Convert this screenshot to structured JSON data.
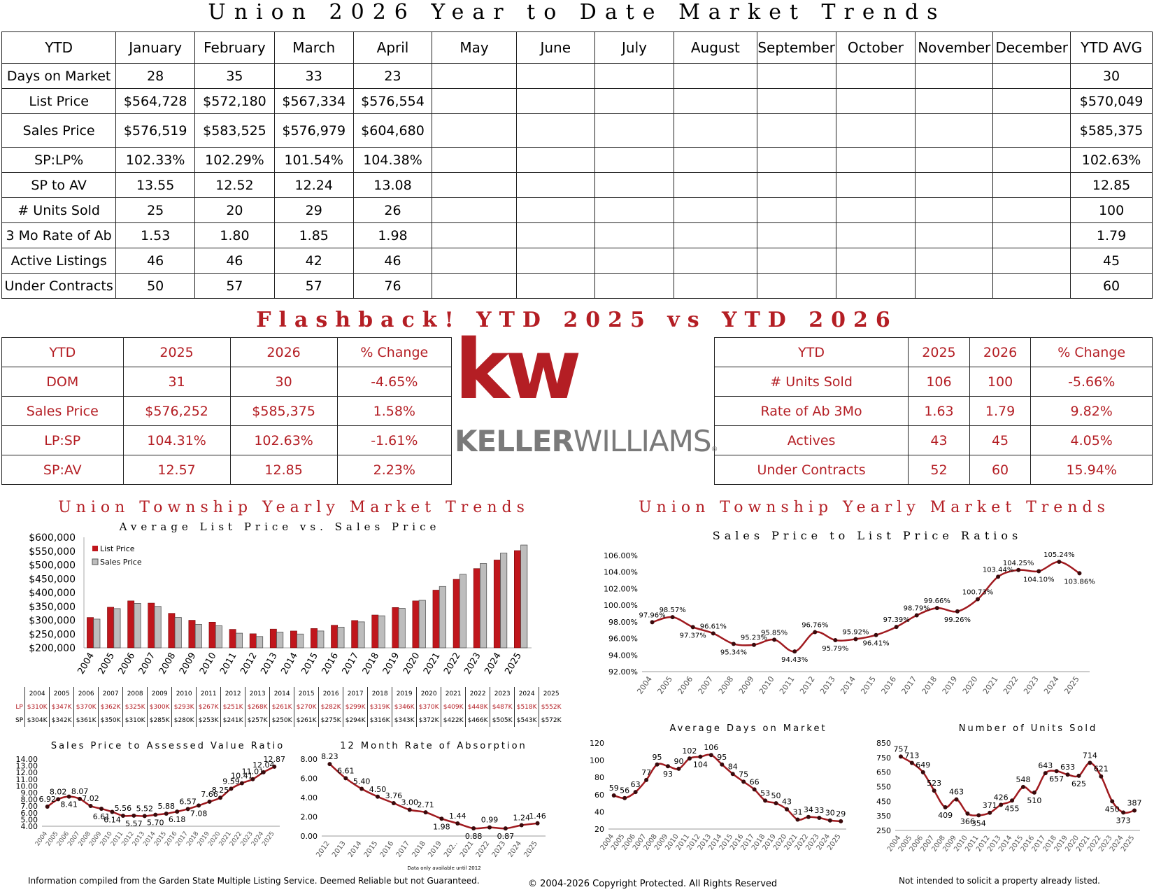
{
  "title": "Union 2026 Year to Date Market Trends",
  "main_table": {
    "headers": [
      "YTD",
      "January",
      "February",
      "March",
      "April",
      "May",
      "June",
      "July",
      "August",
      "September",
      "October",
      "November",
      "December",
      "YTD AVG"
    ],
    "rows": [
      {
        "label": "Days on Market",
        "values": [
          "28",
          "35",
          "33",
          "23",
          "",
          "",
          "",
          "",
          "",
          "",
          "",
          ""
        ],
        "avg": "30"
      },
      {
        "label": "List Price",
        "values": [
          "$564,728",
          "$572,180",
          "$567,334",
          "$576,554",
          "",
          "",
          "",
          "",
          "",
          "",
          "",
          ""
        ],
        "avg": "$570,049"
      },
      {
        "label": "Sales Price",
        "values": [
          "$576,519",
          "$583,525",
          "$576,979",
          "$604,680",
          "",
          "",
          "",
          "",
          "",
          "",
          "",
          ""
        ],
        "avg": "$585,375"
      },
      {
        "label": "SP:LP%",
        "values": [
          "102.33%",
          "102.29%",
          "101.54%",
          "104.38%",
          "",
          "",
          "",
          "",
          "",
          "",
          "",
          ""
        ],
        "avg": "102.63%"
      },
      {
        "label": "SP to AV",
        "values": [
          "13.55",
          "12.52",
          "12.24",
          "13.08",
          "",
          "",
          "",
          "",
          "",
          "",
          "",
          ""
        ],
        "avg": "12.85"
      },
      {
        "label": "# Units Sold",
        "values": [
          "25",
          "20",
          "29",
          "26",
          "",
          "",
          "",
          "",
          "",
          "",
          "",
          ""
        ],
        "avg": "100"
      },
      {
        "label": "3 Mo Rate of Ab",
        "values": [
          "1.53",
          "1.80",
          "1.85",
          "1.98",
          "",
          "",
          "",
          "",
          "",
          "",
          "",
          ""
        ],
        "avg": "1.79"
      },
      {
        "label": "Active Listings",
        "values": [
          "46",
          "46",
          "42",
          "46",
          "",
          "",
          "",
          "",
          "",
          "",
          "",
          ""
        ],
        "avg": "45"
      },
      {
        "label": "Under Contracts",
        "values": [
          "50",
          "57",
          "57",
          "76",
          "",
          "",
          "",
          "",
          "",
          "",
          "",
          ""
        ],
        "avg": "60"
      }
    ]
  },
  "flashback": {
    "title": "Flashback!  YTD 2025 vs YTD 2026",
    "left": {
      "headers": [
        "YTD",
        "2025",
        "2026",
        "% Change"
      ],
      "rows": [
        [
          "DOM",
          "31",
          "30",
          "-4.65%"
        ],
        [
          "Sales Price",
          "$576,252",
          "$585,375",
          "1.58%"
        ],
        [
          "LP:SP",
          "104.31%",
          "102.63%",
          "-1.61%"
        ],
        [
          "SP:AV",
          "12.57",
          "12.85",
          "2.23%"
        ]
      ]
    },
    "right": {
      "headers": [
        "YTD",
        "2025",
        "2026",
        "% Change"
      ],
      "rows": [
        [
          "# Units Sold",
          "106",
          "100",
          "-5.66%"
        ],
        [
          "Rate of Ab 3Mo",
          "1.63",
          "1.79",
          "9.82%"
        ],
        [
          "Actives",
          "43",
          "45",
          "4.05%"
        ],
        [
          "Under Contracts",
          "52",
          "60",
          "15.94%"
        ]
      ]
    }
  },
  "logo": {
    "mark": "kw",
    "text_bold": "KELLER",
    "text_light": "WILLIAMS",
    "reg": "®"
  },
  "left_section": {
    "title": "Union Township Yearly Market Trends",
    "subtitle": "Average List Price vs. Sales Price"
  },
  "right_section": {
    "title": "Union Township Yearly Market Trends",
    "subtitle": "Sales Price to List Price Ratios"
  },
  "colors": {
    "accent": "#b41e24",
    "list_bar": "#c0161c",
    "sales_bar": "#bdbdbd"
  },
  "chart_data": [
    {
      "id": "lp-sp",
      "type": "bar",
      "title": "Average List Price vs. Sales Price",
      "categories": [
        "2004",
        "2005",
        "2006",
        "2007",
        "2008",
        "2009",
        "2010",
        "2011",
        "2012",
        "2013",
        "2014",
        "2015",
        "2016",
        "2017",
        "2018",
        "2019",
        "2020",
        "2021",
        "2022",
        "2023",
        "2024",
        "2025"
      ],
      "series": [
        {
          "name": "List Price",
          "values": [
            310000,
            347000,
            370000,
            362000,
            325000,
            300000,
            293000,
            267000,
            251000,
            268000,
            261000,
            270000,
            282000,
            299000,
            319000,
            346000,
            370000,
            409000,
            448000,
            487000,
            518000,
            552000
          ]
        },
        {
          "name": "Sales Price",
          "values": [
            304000,
            342000,
            361000,
            350000,
            310000,
            285000,
            280000,
            253000,
            241000,
            257000,
            250000,
            261000,
            275000,
            294000,
            316000,
            343000,
            372000,
            422000,
            466000,
            505000,
            543000,
            572000
          ]
        }
      ],
      "yticks": [
        "$200,000",
        "$250,000",
        "$300,000",
        "$350,000",
        "$400,000",
        "$450,000",
        "$500,000",
        "$550,000",
        "$600,000"
      ],
      "ylim": [
        200000,
        600000
      ],
      "table": {
        "lp_label": "LP",
        "sp_label": "SP",
        "lp": [
          "$310K",
          "$347K",
          "$370K",
          "$362K",
          "$325K",
          "$300K",
          "$293K",
          "$267K",
          "$251K",
          "$268K",
          "$261K",
          "$270K",
          "$282K",
          "$299K",
          "$319K",
          "$346K",
          "$370K",
          "$409K",
          "$448K",
          "$487K",
          "$518K",
          "$552K"
        ],
        "sp": [
          "$304K",
          "$342K",
          "$361K",
          "$350K",
          "$310K",
          "$285K",
          "$280K",
          "$253K",
          "$241K",
          "$257K",
          "$250K",
          "$261K",
          "$275K",
          "$294K",
          "$316K",
          "$343K",
          "$372K",
          "$422K",
          "$466K",
          "$505K",
          "$543K",
          "$572K"
        ]
      }
    },
    {
      "id": "splp",
      "type": "line",
      "title": "Sales Price to List Price Ratios",
      "x": [
        "2004",
        "2005",
        "2006",
        "2007",
        "2008",
        "2009",
        "2010",
        "2011",
        "2012",
        "2013",
        "2014",
        "2015",
        "2016",
        "2017",
        "2018",
        "2019",
        "2020",
        "2021",
        "2022",
        "2023",
        "2024",
        "2025"
      ],
      "values": [
        97.96,
        98.57,
        97.37,
        96.61,
        95.34,
        95.23,
        95.85,
        94.43,
        96.76,
        95.79,
        95.92,
        96.41,
        97.39,
        98.79,
        99.66,
        99.26,
        100.73,
        103.44,
        104.25,
        104.1,
        105.24,
        103.86
      ],
      "labels": [
        "97.96%",
        "98.57%",
        "97.37%",
        "96.61%",
        "95.34%",
        "95.23%",
        "95.85%",
        "94.43%",
        "96.76%",
        "95.79%",
        "95.92%",
        "96.41%",
        "97.39%",
        "98.79%",
        "99.66%",
        "99.26%",
        "100.73%",
        "103.44%",
        "104.25%",
        "104.10%",
        "105.24%",
        "103.86%"
      ],
      "yticks": [
        "92.00%",
        "94.00%",
        "96.00%",
        "98.00%",
        "100.00%",
        "102.00%",
        "104.00%",
        "106.00%"
      ],
      "ylim": [
        92,
        106
      ]
    },
    {
      "id": "spav",
      "type": "line",
      "title": "Sales Price to Assessed Value Ratio",
      "x": [
        "2004",
        "2005",
        "2006",
        "2007",
        "2008",
        "2009",
        "2010",
        "2011",
        "2012",
        "2013",
        "2014",
        "2015",
        "2016",
        "2017",
        "2018",
        "2019",
        "2020",
        "2021",
        "2022",
        "2023",
        "2024",
        "2025"
      ],
      "values": [
        6.92,
        8.02,
        8.41,
        8.07,
        7.02,
        6.61,
        6.14,
        5.56,
        5.57,
        5.52,
        5.7,
        5.88,
        6.18,
        6.57,
        7.08,
        7.66,
        8.25,
        9.59,
        10.41,
        11.01,
        12.04,
        12.87
      ],
      "labels": [
        "6.92",
        "8.02",
        "8.41",
        "8.07",
        "7.02",
        "6.61",
        "6.14",
        "5.56",
        "5.57",
        "5.52",
        "5.70",
        "5.88",
        "6.18",
        "6.57",
        "7.08",
        "7.66",
        "8.25",
        "9.59",
        "10.41",
        "11.01",
        "12.04",
        "12.87"
      ],
      "yticks": [
        "4.00",
        "5.00",
        "6.00",
        "7.00",
        "8.00",
        "9.00",
        "10.00",
        "11.00",
        "12.00",
        "13.00",
        "14.00"
      ],
      "ylim": [
        4,
        14
      ]
    },
    {
      "id": "absorb",
      "type": "line",
      "title": "12 Month Rate of Absorption",
      "x": [
        "2012",
        "2013",
        "2014",
        "2015",
        "2016",
        "2017",
        "2018",
        "2019",
        "202..",
        "2021",
        "2022",
        "2023",
        "2024",
        "2025"
      ],
      "values": [
        8.23,
        6.61,
        5.4,
        4.5,
        3.76,
        3.0,
        2.71,
        1.98,
        1.44,
        0.88,
        0.99,
        0.87,
        1.24,
        1.46
      ],
      "labels": [
        "8.23",
        "6.61",
        "5.40",
        "4.50",
        "3.76",
        "3.00",
        "2.71",
        "1.98",
        "1.44",
        "0.88",
        "0.99",
        "0.87",
        "1.24",
        "1.46"
      ],
      "yticks": [
        "0.00",
        "2.00",
        "4.00",
        "6.00",
        "8.00"
      ],
      "ylim": [
        0,
        8.8
      ],
      "note": "Data only available until 2012"
    },
    {
      "id": "dom",
      "type": "line",
      "title": "Average Days on Market",
      "x": [
        "2004",
        "2005",
        "2006",
        "2007",
        "2008",
        "2009",
        "2010",
        "2011",
        "2012",
        "2013",
        "2014",
        "2015",
        "2016",
        "2017",
        "2018",
        "2019",
        "2020",
        "2021",
        "2022",
        "2023",
        "2024",
        "2025"
      ],
      "values": [
        59,
        56,
        63,
        77,
        95,
        93,
        90,
        102,
        104,
        106,
        95,
        84,
        75,
        66,
        53,
        50,
        43,
        31,
        34,
        33,
        30,
        29
      ],
      "labels": [
        "59",
        "56",
        "63",
        "77",
        "95",
        "93",
        "90",
        "102",
        "104",
        "106",
        "95",
        "84",
        "75",
        "66",
        "53",
        "50",
        "43",
        "31",
        "34",
        "33",
        "30",
        "29"
      ],
      "yticks": [
        "20",
        "40",
        "60",
        "80",
        "100",
        "120"
      ],
      "ylim": [
        20,
        120
      ]
    },
    {
      "id": "units",
      "type": "line",
      "title": "Number of Units Sold",
      "x": [
        "2004",
        "2005",
        "2006",
        "2007",
        "2008",
        "2009",
        "2010",
        "2011",
        "2012",
        "2013",
        "2014",
        "2015",
        "2016",
        "2017",
        "2018",
        "2019",
        "2020",
        "2021",
        "2022",
        "2023",
        "2024",
        "2025"
      ],
      "values": [
        757,
        713,
        649,
        523,
        409,
        463,
        366,
        354,
        371,
        426,
        455,
        548,
        510,
        643,
        657,
        633,
        625,
        714,
        621,
        450,
        373,
        387
      ],
      "labels": [
        "757",
        "713",
        "649",
        "523",
        "409",
        "463",
        "366",
        "354",
        "371",
        "426",
        "455",
        "548",
        "510",
        "643",
        "657",
        "633",
        "625",
        "714",
        "621",
        "450",
        "373",
        "387"
      ],
      "yticks": [
        "250",
        "350",
        "450",
        "550",
        "650",
        "750",
        "850"
      ],
      "ylim": [
        250,
        850
      ]
    }
  ],
  "footer": {
    "left": "Information compiled from the Garden State Multiple Listing Service.  Deemed Reliable but not Guaranteed.",
    "center": "© 2004-2026 Copyright Protected.  All Rights Reserved",
    "right": "Not intended to solicit a property already listed."
  }
}
